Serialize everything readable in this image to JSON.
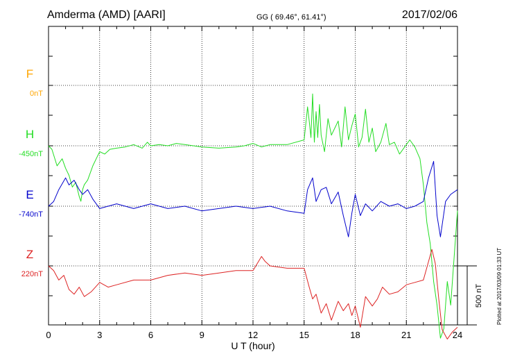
{
  "header": {
    "station": "Amderma (AMD)  [AARI]",
    "coords": "GG ( 69.46°,  61.41°)",
    "date": "2017/02/06"
  },
  "footer": {
    "plotted": "Plotted at 2017/03/09 01:33 UT"
  },
  "chart_data": {
    "type": "line",
    "xlabel": "U T (hour)",
    "xlim": [
      0,
      24
    ],
    "xticks": [
      "0",
      "3",
      "6",
      "9",
      "12",
      "15",
      "18",
      "21",
      "24"
    ],
    "scale_bar_label": "500 nT",
    "scale_bar_nT": 500,
    "series": [
      {
        "name": "F",
        "baseline_label": "0nT",
        "color": "#ffa500",
        "x": [],
        "y": []
      },
      {
        "name": "H",
        "baseline_label": "-450nT",
        "color": "#22dd22",
        "x": [
          0,
          0.2,
          0.5,
          0.8,
          1.0,
          1.2,
          1.4,
          1.6,
          1.8,
          1.9,
          2.0,
          2.1,
          2.3,
          2.6,
          2.8,
          3.0,
          3.3,
          3.6,
          4.0,
          4.5,
          5.0,
          5.5,
          5.8,
          6.0,
          6.5,
          7.0,
          7.5,
          8.0,
          9.0,
          10.0,
          11.0,
          11.5,
          12.0,
          12.5,
          13.0,
          14.0,
          15.0,
          15.2,
          15.3,
          15.4,
          15.5,
          15.6,
          15.7,
          15.8,
          15.9,
          16.0,
          16.2,
          16.4,
          16.6,
          16.8,
          17.0,
          17.2,
          17.4,
          17.6,
          17.8,
          18.0,
          18.2,
          18.4,
          18.6,
          18.8,
          19.0,
          19.2,
          19.5,
          19.8,
          20.0,
          20.3,
          20.6,
          20.9,
          21.2,
          21.5,
          21.8,
          22.0,
          22.2,
          22.4,
          22.6,
          22.8,
          23.0,
          23.2,
          23.4,
          23.6,
          23.8,
          24.0
        ],
        "y": [
          -450,
          -480,
          -620,
          -560,
          -640,
          -700,
          -800,
          -760,
          -880,
          -920,
          -820,
          -780,
          -740,
          -620,
          -560,
          -500,
          -520,
          -480,
          -470,
          -460,
          -440,
          -470,
          -420,
          -450,
          -440,
          -450,
          -430,
          -440,
          -460,
          -470,
          -460,
          -450,
          -430,
          -460,
          -440,
          -440,
          -400,
          -120,
          -240,
          -380,
          -10,
          -420,
          -160,
          -380,
          -100,
          -360,
          -500,
          -220,
          -360,
          -300,
          -240,
          -460,
          -120,
          -400,
          -280,
          -180,
          -460,
          -380,
          -140,
          -420,
          -300,
          -500,
          -420,
          -260,
          -440,
          -420,
          -520,
          -460,
          -400,
          -460,
          -560,
          -780,
          -1100,
          -1280,
          -1600,
          -1800,
          -2080,
          -2000,
          -1600,
          -1800,
          -1400,
          -1000
        ]
      },
      {
        "name": "E",
        "baseline_label": "-740nT",
        "color": "#0000cc",
        "x": [
          0,
          0.3,
          0.6,
          1.0,
          1.2,
          1.5,
          1.8,
          2.0,
          2.3,
          2.6,
          3.0,
          3.5,
          4.0,
          5.0,
          6.0,
          7.0,
          8.0,
          9.0,
          10.0,
          11.0,
          12.0,
          13.0,
          14.0,
          15.0,
          15.2,
          15.5,
          15.7,
          16.0,
          16.3,
          16.6,
          17.0,
          17.3,
          17.6,
          17.8,
          18.0,
          18.3,
          18.6,
          19.0,
          19.5,
          20.0,
          20.5,
          21.0,
          21.5,
          22.0,
          22.3,
          22.6,
          22.8,
          23.0,
          23.3,
          23.6,
          24.0
        ],
        "y": [
          -740,
          -700,
          -600,
          -500,
          -560,
          -520,
          -600,
          -640,
          -600,
          -680,
          -760,
          -740,
          -720,
          -760,
          -720,
          -760,
          -740,
          -780,
          -760,
          -740,
          -760,
          -740,
          -780,
          -800,
          -600,
          -500,
          -700,
          -600,
          -580,
          -720,
          -620,
          -820,
          -1000,
          -800,
          -640,
          -820,
          -720,
          -780,
          -700,
          -740,
          -720,
          -760,
          -740,
          -700,
          -500,
          -360,
          -820,
          -1000,
          -700,
          -640,
          -600
        ]
      },
      {
        "name": "Z",
        "baseline_label": "220nT",
        "color": "#dd2222",
        "x": [
          0,
          0.3,
          0.6,
          0.9,
          1.2,
          1.5,
          1.8,
          2.1,
          2.5,
          3.0,
          3.5,
          4.0,
          5.0,
          6.0,
          7.0,
          8.0,
          9.0,
          10.0,
          11.0,
          12.0,
          12.5,
          12.7,
          13.0,
          14.0,
          15.0,
          15.3,
          15.5,
          15.7,
          16.0,
          16.3,
          16.6,
          17.0,
          17.3,
          17.6,
          17.8,
          18.0,
          18.3,
          18.6,
          19.0,
          19.3,
          19.6,
          20.0,
          20.5,
          21.0,
          21.5,
          22.0,
          22.5,
          22.7,
          22.9,
          23.1,
          23.4,
          23.7,
          24.0
        ],
        "y": [
          220,
          180,
          100,
          140,
          20,
          -20,
          40,
          -40,
          0,
          80,
          40,
          60,
          100,
          100,
          140,
          160,
          140,
          160,
          180,
          180,
          300,
          260,
          220,
          200,
          200,
          40,
          -60,
          -20,
          -180,
          -100,
          -240,
          -80,
          -160,
          -100,
          -200,
          -120,
          -300,
          -40,
          -120,
          -60,
          40,
          -20,
          0,
          60,
          80,
          100,
          360,
          240,
          -60,
          -320,
          -400,
          -340,
          -300
        ]
      }
    ]
  }
}
